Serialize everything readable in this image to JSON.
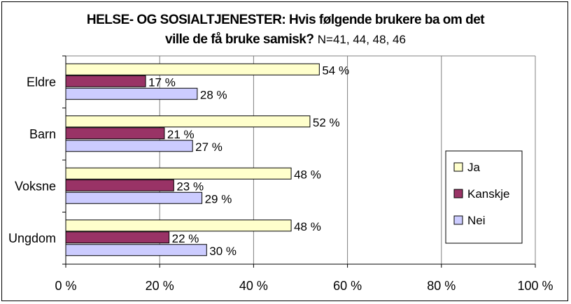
{
  "chart_data": {
    "type": "bar",
    "orientation": "horizontal",
    "title": "HELSE- OG SOSIALTJENESTER: Hvis følgende brukere ba om det ville de få bruke samisk?",
    "title_line1": "HELSE- OG SOSIALTJENESTER: Hvis følgende brukere ba om det",
    "title_line2_bold": "ville de få bruke samisk?",
    "subtitle": "N=41, 44, 48, 46",
    "categories": [
      "Eldre",
      "Barn",
      "Voksne",
      "Ungdom"
    ],
    "series": [
      {
        "name": "Ja",
        "values": [
          54,
          52,
          48,
          48
        ],
        "labels": [
          "54 %",
          "52 %",
          "48 %",
          "48 %"
        ],
        "color": "#FFFFCC"
      },
      {
        "name": "Kanskje",
        "values": [
          17,
          21,
          23,
          22
        ],
        "labels": [
          "17 %",
          "21 %",
          "23 %",
          "22 %"
        ],
        "color": "#993366"
      },
      {
        "name": "Nei",
        "values": [
          28,
          27,
          29,
          30
        ],
        "labels": [
          "28 %",
          "27 %",
          "29 %",
          "30 %"
        ],
        "color": "#CCCCFF"
      }
    ],
    "xlim": [
      0,
      100
    ],
    "xticks": [
      0,
      20,
      40,
      60,
      80,
      100
    ],
    "xtick_labels": [
      "0 %",
      "20 %",
      "40 %",
      "60 %",
      "80 %",
      "100 %"
    ],
    "xlabel": "",
    "ylabel": "",
    "grid": true,
    "legend": "right"
  }
}
